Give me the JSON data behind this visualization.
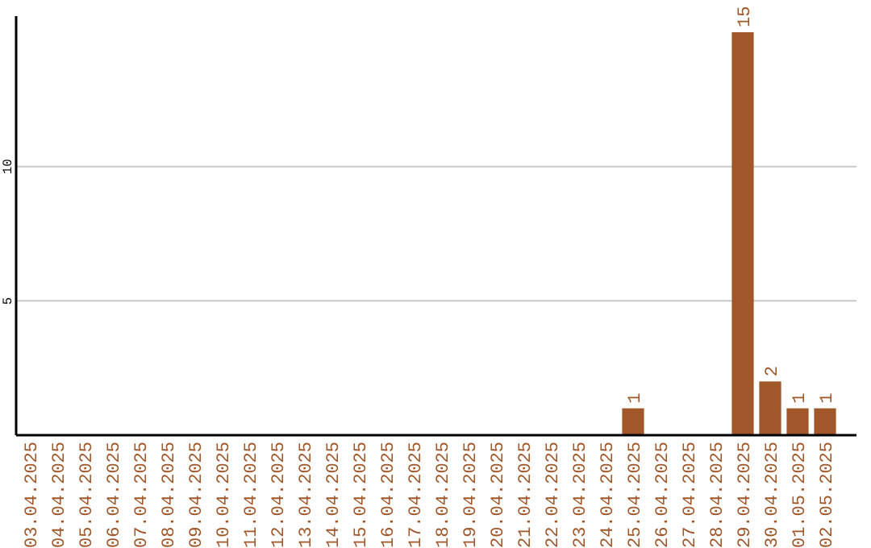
{
  "chart_data": {
    "type": "bar",
    "categories": [
      "03.04.2025",
      "04.04.2025",
      "05.04.2025",
      "06.04.2025",
      "07.04.2025",
      "08.04.2025",
      "09.04.2025",
      "10.04.2025",
      "11.04.2025",
      "12.04.2025",
      "13.04.2025",
      "14.04.2025",
      "15.04.2025",
      "16.04.2025",
      "17.04.2025",
      "18.04.2025",
      "19.04.2025",
      "20.04.2025",
      "21.04.2025",
      "22.04.2025",
      "23.04.2025",
      "24.04.2025",
      "25.04.2025",
      "26.04.2025",
      "27.04.2025",
      "28.04.2025",
      "29.04.2025",
      "30.04.2025",
      "01.05.2025",
      "02.05.2025"
    ],
    "values": [
      0,
      0,
      0,
      0,
      0,
      0,
      0,
      0,
      0,
      0,
      0,
      0,
      0,
      0,
      0,
      0,
      0,
      0,
      0,
      0,
      0,
      0,
      1,
      0,
      0,
      0,
      15,
      2,
      1,
      1
    ],
    "value_labels": [
      null,
      null,
      null,
      null,
      null,
      null,
      null,
      null,
      null,
      null,
      null,
      null,
      null,
      null,
      null,
      null,
      null,
      null,
      null,
      null,
      null,
      null,
      "1",
      null,
      null,
      null,
      "15",
      "2",
      "1",
      "1"
    ],
    "color": "#a0572a",
    "ylim": [
      0,
      15.6
    ],
    "yticks": [
      5,
      10
    ],
    "grid": "y"
  }
}
